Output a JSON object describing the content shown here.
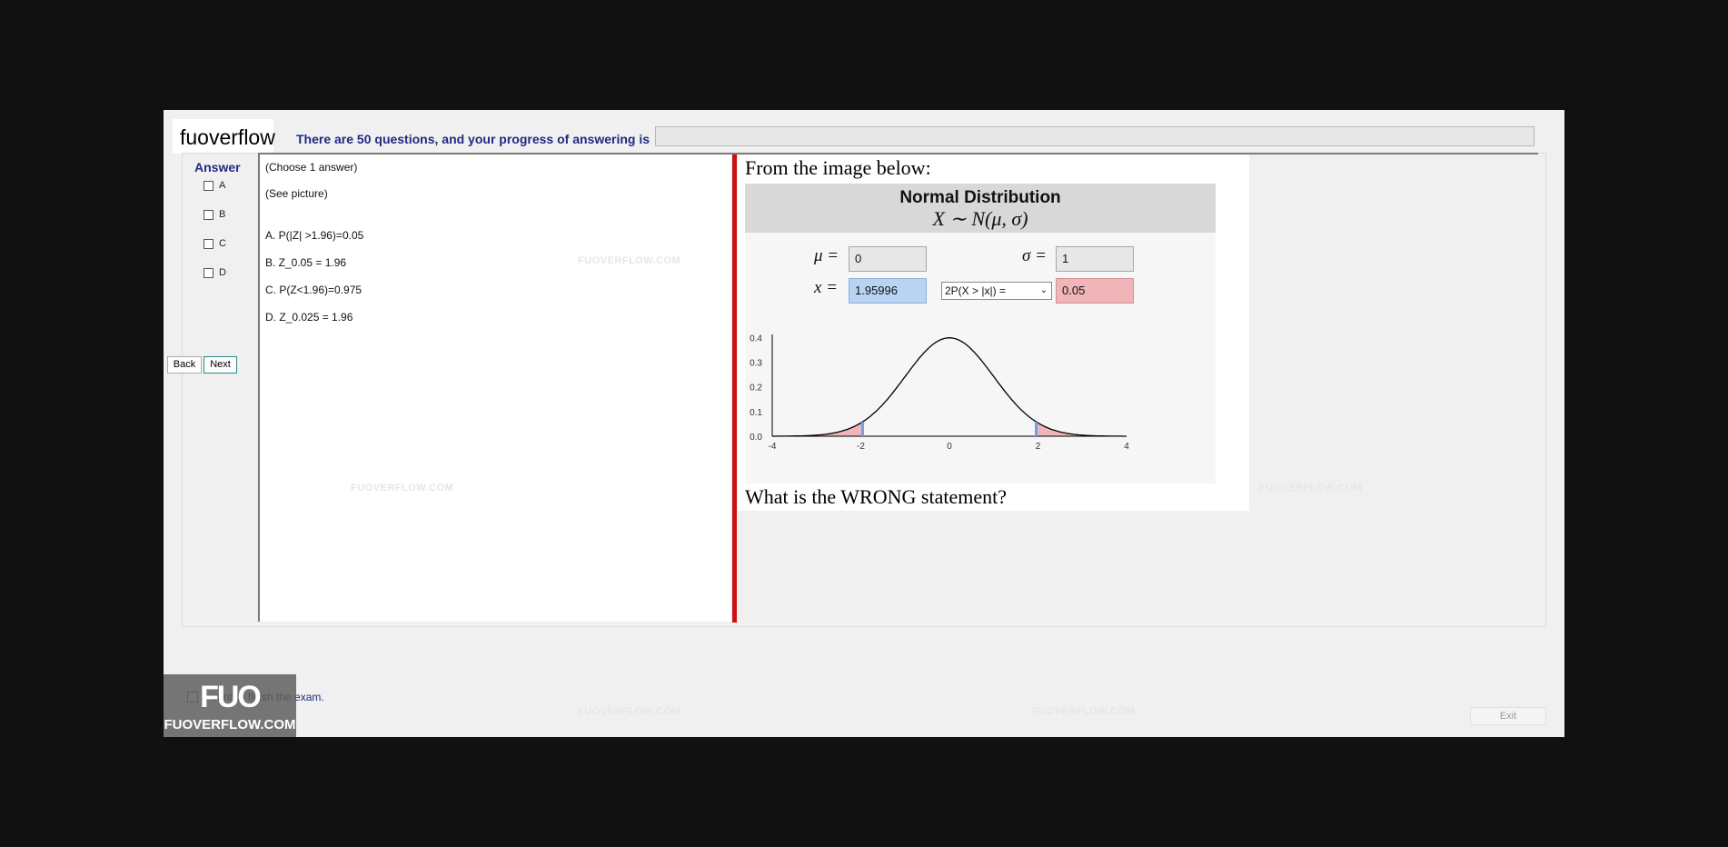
{
  "brand": "fuoverflow",
  "progress": {
    "text": "There are 50 questions, and your progress of answering is",
    "fraction": 0
  },
  "answer_panel": {
    "title": "Answer",
    "options": [
      "A",
      "B",
      "C",
      "D"
    ],
    "back_label": "Back",
    "next_label": "Next"
  },
  "question": {
    "instruction": "(Choose 1 answer)",
    "see_picture": "(See picture)",
    "choices": [
      "A.  P(|Z| >1.96)=0.05",
      "B.  Z_0.05 =  1.96",
      "C.  P(Z<1.96)=0.975",
      "D.  Z_0.025 = 1.96"
    ]
  },
  "content": {
    "intro": "From the image below:",
    "prompt": "What is the WRONG statement?",
    "widget": {
      "title": "Normal Distribution",
      "formula": "X ∼ N(μ, σ)",
      "mu_label": "μ =",
      "mu_value": "0",
      "sigma_label": "σ =",
      "sigma_value": "1",
      "x_label": "x =",
      "x_value": "1.95996",
      "mode": "2P(X > |x|) =",
      "result": "0.05"
    }
  },
  "chart_data": {
    "type": "line",
    "x_ticks": [
      "-4",
      "-2",
      "0",
      "2",
      "4"
    ],
    "y_ticks": [
      "0.0",
      "0.1",
      "0.2",
      "0.3",
      "0.4"
    ],
    "xlim": [
      -4,
      4
    ],
    "ylim": [
      0,
      0.42
    ],
    "mu": 0,
    "sigma": 1,
    "critical": 1.95996,
    "curve_color": "#000000",
    "tail_color": "#f0b5b8",
    "marker_color": "#6fa0e0"
  },
  "footer": {
    "finish_label": "I want to finish the exam.",
    "exit_label": "Exit",
    "logo_mark": "FUO",
    "logo_text": "FUOVERFLOW.COM"
  }
}
